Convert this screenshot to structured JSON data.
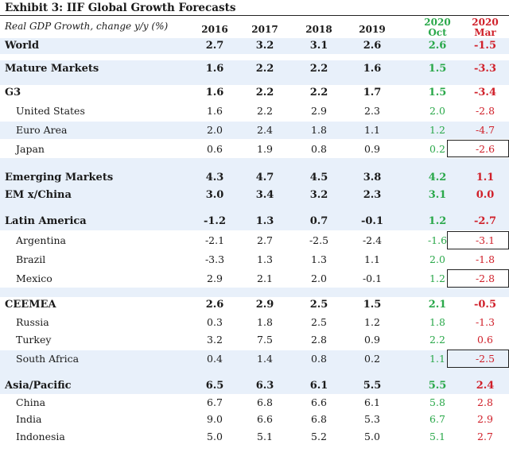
{
  "title": "Exhibit 3: IIF Global Growth Forecasts",
  "header": {
    "label": "Real GDP Growth, change y/y (%)",
    "years": [
      "2016",
      "2017",
      "2018",
      "2019"
    ],
    "oct": [
      "2020",
      "Oct"
    ],
    "mar": [
      "2020",
      "Mar"
    ]
  },
  "colors": {
    "green": "#2aa84a",
    "red": "#d0202a",
    "shade": "#e8f0fa"
  },
  "rows": [
    {
      "name": "World",
      "v": [
        "2.7",
        "3.2",
        "3.1",
        "2.6",
        "2.6",
        "-1.5"
      ]
    },
    {
      "name": "Mature Markets",
      "v": [
        "1.6",
        "2.2",
        "2.2",
        "1.6",
        "1.5",
        "-3.3"
      ]
    },
    {
      "name": "G3",
      "v": [
        "1.6",
        "2.2",
        "2.2",
        "1.7",
        "1.5",
        "-3.4"
      ]
    },
    {
      "name": "United States",
      "v": [
        "1.6",
        "2.2",
        "2.9",
        "2.3",
        "2.0",
        "-2.8"
      ]
    },
    {
      "name": "Euro Area",
      "v": [
        "2.0",
        "2.4",
        "1.8",
        "1.1",
        "1.2",
        "-4.7"
      ]
    },
    {
      "name": "Japan",
      "v": [
        "0.6",
        "1.9",
        "0.8",
        "0.9",
        "0.2",
        "-2.6"
      ]
    },
    {
      "name": "Emerging Markets",
      "v": [
        "4.3",
        "4.7",
        "4.5",
        "3.8",
        "4.2",
        "1.1"
      ]
    },
    {
      "name": "EM x/China",
      "v": [
        "3.0",
        "3.4",
        "3.2",
        "2.3",
        "3.1",
        "0.0"
      ]
    },
    {
      "name": "Latin America",
      "v": [
        "-1.2",
        "1.3",
        "0.7",
        "-0.1",
        "1.2",
        "-2.7"
      ]
    },
    {
      "name": "Argentina",
      "v": [
        "-2.1",
        "2.7",
        "-2.5",
        "-2.4",
        "-1.6",
        "-3.1"
      ]
    },
    {
      "name": "Brazil",
      "v": [
        "-3.3",
        "1.3",
        "1.3",
        "1.1",
        "2.0",
        "-1.8"
      ]
    },
    {
      "name": "Mexico",
      "v": [
        "2.9",
        "2.1",
        "2.0",
        "-0.1",
        "1.2",
        "-2.8"
      ]
    },
    {
      "name": "CEEMEA",
      "v": [
        "2.6",
        "2.9",
        "2.5",
        "1.5",
        "2.1",
        "-0.5"
      ]
    },
    {
      "name": "Russia",
      "v": [
        "0.3",
        "1.8",
        "2.5",
        "1.2",
        "1.8",
        "-1.3"
      ]
    },
    {
      "name": "Turkey",
      "v": [
        "3.2",
        "7.5",
        "2.8",
        "0.9",
        "2.2",
        "0.6"
      ]
    },
    {
      "name": "South Africa",
      "v": [
        "0.4",
        "1.4",
        "0.8",
        "0.2",
        "1.1",
        "-2.5"
      ]
    },
    {
      "name": "Asia/Pacific",
      "v": [
        "6.5",
        "6.3",
        "6.1",
        "5.5",
        "5.5",
        "2.4"
      ]
    },
    {
      "name": "China",
      "v": [
        "6.7",
        "6.8",
        "6.6",
        "6.1",
        "5.8",
        "2.8"
      ]
    },
    {
      "name": "India",
      "v": [
        "9.0",
        "6.6",
        "6.8",
        "5.3",
        "6.7",
        "2.9"
      ]
    },
    {
      "name": "Indonesia",
      "v": [
        "5.0",
        "5.1",
        "5.2",
        "5.0",
        "5.1",
        "2.7"
      ]
    }
  ]
}
